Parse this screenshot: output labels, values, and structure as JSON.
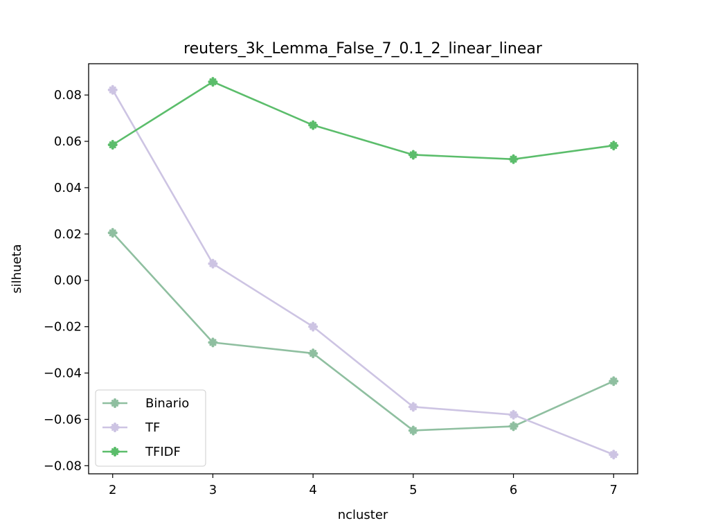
{
  "chart_data": {
    "type": "line",
    "title": "reuters_3k_Lemma_False_7_0.1_2_linear_linear",
    "xlabel": "ncluster",
    "ylabel": "silhueta",
    "x": [
      2,
      3,
      4,
      5,
      6,
      7
    ],
    "xlim": [
      1.76,
      7.24
    ],
    "ylim": [
      -0.0835,
      0.0935
    ],
    "x_ticks": [
      "2",
      "3",
      "4",
      "5",
      "6",
      "7"
    ],
    "y_ticks": [
      0.08,
      0.06,
      0.04,
      0.02,
      0.0,
      -0.02,
      -0.04,
      -0.06,
      -0.08
    ],
    "y_tick_labels": [
      "0.08",
      "0.06",
      "0.04",
      "0.02",
      "0.00",
      "−0.02",
      "−0.04",
      "−0.06",
      "−0.08"
    ],
    "grid": false,
    "legend_position": "lower-left",
    "series": [
      {
        "name": "Binario",
        "color": "#8fbfa0",
        "values": [
          0.0205,
          -0.0268,
          -0.0315,
          -0.0648,
          -0.063,
          -0.0435
        ]
      },
      {
        "name": "TF",
        "color": "#cdc4e3",
        "values": [
          0.0822,
          0.0072,
          -0.02,
          -0.0546,
          -0.058,
          -0.0752
        ]
      },
      {
        "name": "TFIDF",
        "color": "#5bbd6b",
        "values": [
          0.0585,
          0.0857,
          0.067,
          0.0542,
          0.0523,
          0.0582
        ]
      }
    ]
  }
}
